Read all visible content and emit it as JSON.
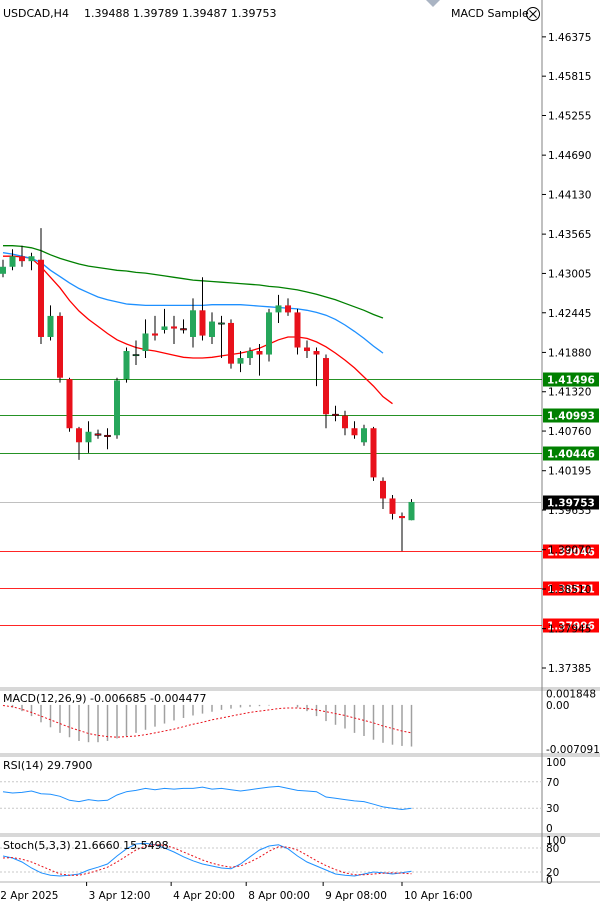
{
  "header": {
    "symbol": "USDCAD,H4",
    "ohlc": "1.39488 1.39789 1.39487 1.39753",
    "indicator_name": "MACD Sample"
  },
  "chart_data": [
    {
      "type": "candlestick",
      "title": "USDCAD,H4",
      "ylim": [
        1.371,
        1.469
      ],
      "y_ticks": [
        "1.46375",
        "1.45815",
        "1.45255",
        "1.44690",
        "1.44130",
        "1.43565",
        "1.43005",
        "1.42445",
        "1.41880",
        "1.41320",
        "1.40760",
        "1.40195",
        "1.39635",
        "1.39070",
        "1.38510",
        "1.37945",
        "1.37385"
      ],
      "x_labels": [
        {
          "label": "2 Apr 2025",
          "index": -0.5
        },
        {
          "label": "3 Apr 12:00",
          "index": 8.8
        },
        {
          "label": "4 Apr 20:00",
          "index": 17.7
        },
        {
          "label": "8 Apr 00:00",
          "index": 25.6
        },
        {
          "label": "9 Apr 08:00",
          "index": 33.7
        },
        {
          "label": "10 Apr 16:00",
          "index": 42.0
        }
      ],
      "candles": [
        {
          "o": 1.43,
          "h": 1.432,
          "l": 1.4295,
          "c": 1.431
        },
        {
          "o": 1.431,
          "h": 1.4335,
          "l": 1.4305,
          "c": 1.4325
        },
        {
          "o": 1.4325,
          "h": 1.434,
          "l": 1.431,
          "c": 1.4318
        },
        {
          "o": 1.4318,
          "h": 1.433,
          "l": 1.4305,
          "c": 1.4325
        },
        {
          "o": 1.432,
          "h": 1.4365,
          "l": 1.42,
          "c": 1.421
        },
        {
          "o": 1.421,
          "h": 1.4255,
          "l": 1.4205,
          "c": 1.424
        },
        {
          "o": 1.424,
          "h": 1.4245,
          "l": 1.4145,
          "c": 1.4152
        },
        {
          "o": 1.415,
          "h": 1.4152,
          "l": 1.4075,
          "c": 1.408
        },
        {
          "o": 1.408,
          "h": 1.4082,
          "l": 1.4035,
          "c": 1.406
        },
        {
          "o": 1.406,
          "h": 1.409,
          "l": 1.4045,
          "c": 1.4075
        },
        {
          "o": 1.4072,
          "h": 1.4078,
          "l": 1.4065,
          "c": 1.407
        },
        {
          "o": 1.407,
          "h": 1.408,
          "l": 1.405,
          "c": 1.4068
        },
        {
          "o": 1.407,
          "h": 1.4152,
          "l": 1.4065,
          "c": 1.4148
        },
        {
          "o": 1.415,
          "h": 1.4195,
          "l": 1.4145,
          "c": 1.419
        },
        {
          "o": 1.4185,
          "h": 1.4205,
          "l": 1.417,
          "c": 1.4185
        },
        {
          "o": 1.419,
          "h": 1.4235,
          "l": 1.418,
          "c": 1.4215
        },
        {
          "o": 1.4215,
          "h": 1.424,
          "l": 1.4205,
          "c": 1.4212
        },
        {
          "o": 1.422,
          "h": 1.425,
          "l": 1.4215,
          "c": 1.4225
        },
        {
          "o": 1.4225,
          "h": 1.424,
          "l": 1.42,
          "c": 1.4222
        },
        {
          "o": 1.4222,
          "h": 1.4235,
          "l": 1.4215,
          "c": 1.422
        },
        {
          "o": 1.421,
          "h": 1.4265,
          "l": 1.4195,
          "c": 1.4248
        },
        {
          "o": 1.4248,
          "h": 1.4295,
          "l": 1.4205,
          "c": 1.4212
        },
        {
          "o": 1.421,
          "h": 1.4245,
          "l": 1.42,
          "c": 1.4232
        },
        {
          "o": 1.423,
          "h": 1.424,
          "l": 1.418,
          "c": 1.423
        },
        {
          "o": 1.423,
          "h": 1.4235,
          "l": 1.4165,
          "c": 1.4172
        },
        {
          "o": 1.4172,
          "h": 1.419,
          "l": 1.416,
          "c": 1.418
        },
        {
          "o": 1.418,
          "h": 1.4195,
          "l": 1.417,
          "c": 1.419
        },
        {
          "o": 1.419,
          "h": 1.42,
          "l": 1.4155,
          "c": 1.4185
        },
        {
          "o": 1.4185,
          "h": 1.425,
          "l": 1.4175,
          "c": 1.4245
        },
        {
          "o": 1.4245,
          "h": 1.427,
          "l": 1.423,
          "c": 1.4255
        },
        {
          "o": 1.4255,
          "h": 1.4265,
          "l": 1.424,
          "c": 1.4245
        },
        {
          "o": 1.4245,
          "h": 1.425,
          "l": 1.4185,
          "c": 1.4195
        },
        {
          "o": 1.4195,
          "h": 1.4205,
          "l": 1.418,
          "c": 1.419
        },
        {
          "o": 1.419,
          "h": 1.4195,
          "l": 1.414,
          "c": 1.4185
        },
        {
          "o": 1.418,
          "h": 1.4185,
          "l": 1.408,
          "c": 1.41
        },
        {
          "o": 1.41,
          "h": 1.4112,
          "l": 1.409,
          "c": 1.4098
        },
        {
          "o": 1.4098,
          "h": 1.4105,
          "l": 1.407,
          "c": 1.408
        },
        {
          "o": 1.408,
          "h": 1.409,
          "l": 1.4065,
          "c": 1.407
        },
        {
          "o": 1.406,
          "h": 1.4085,
          "l": 1.4055,
          "c": 1.408
        },
        {
          "o": 1.408,
          "h": 1.4082,
          "l": 1.4005,
          "c": 1.401
        },
        {
          "o": 1.4005,
          "h": 1.401,
          "l": 1.3965,
          "c": 1.398
        },
        {
          "o": 1.398,
          "h": 1.3985,
          "l": 1.395,
          "c": 1.3958
        },
        {
          "o": 1.3955,
          "h": 1.396,
          "l": 1.3905,
          "c": 1.3952
        },
        {
          "o": 1.3949,
          "h": 1.3979,
          "l": 1.3949,
          "c": 1.3975
        }
      ],
      "moving_averages": [
        {
          "color": "#ff0000",
          "values": [
            1.4325,
            1.4325,
            1.4324,
            1.4322,
            1.431,
            1.4295,
            1.428,
            1.4262,
            1.4247,
            1.4235,
            1.4225,
            1.4215,
            1.4206,
            1.42,
            1.4195,
            1.4192,
            1.419,
            1.4187,
            1.4184,
            1.4181,
            1.418,
            1.418,
            1.4181,
            1.4183,
            1.4185,
            1.4187,
            1.419,
            1.4194,
            1.42,
            1.4206,
            1.421,
            1.421,
            1.4208,
            1.4203,
            1.4196,
            1.4187,
            1.4177,
            1.4166,
            1.4153,
            1.414,
            1.4125,
            1.4115
          ]
        },
        {
          "color": "#1e90ff",
          "values": [
            1.433,
            1.4328,
            1.4325,
            1.4322,
            1.4316,
            1.4305,
            1.4296,
            1.4287,
            1.4279,
            1.4273,
            1.4267,
            1.4263,
            1.426,
            1.4257,
            1.4256,
            1.4255,
            1.4255,
            1.4255,
            1.4255,
            1.4255,
            1.4255,
            1.4255,
            1.4256,
            1.4256,
            1.4256,
            1.4256,
            1.4255,
            1.4254,
            1.4253,
            1.4252,
            1.4251,
            1.425,
            1.4248,
            1.4245,
            1.4241,
            1.4235,
            1.4227,
            1.4218,
            1.4208,
            1.4197,
            1.4187
          ]
        },
        {
          "color": "#008000",
          "values": [
            1.434,
            1.434,
            1.4339,
            1.4337,
            1.4333,
            1.4327,
            1.4322,
            1.4318,
            1.4314,
            1.4311,
            1.4309,
            1.4307,
            1.4305,
            1.4304,
            1.4302,
            1.4301,
            1.4299,
            1.4297,
            1.4295,
            1.4293,
            1.4291,
            1.429,
            1.4289,
            1.4288,
            1.4287,
            1.4286,
            1.4285,
            1.4284,
            1.4282,
            1.4281,
            1.4279,
            1.4277,
            1.4274,
            1.4271,
            1.4267,
            1.4263,
            1.4258,
            1.4253,
            1.4248,
            1.4242,
            1.4237
          ]
        }
      ],
      "horizontal_levels": [
        {
          "label": "1.41496",
          "value": 1.41496,
          "color": "#008000"
        },
        {
          "label": "1.40993",
          "value": 1.40993,
          "color": "#008000"
        },
        {
          "label": "1.40446",
          "value": 1.40446,
          "color": "#008000"
        },
        {
          "label": "1.39753",
          "value": 1.39753,
          "color": "#000000"
        },
        {
          "label": "1.39046",
          "value": 1.39046,
          "color": "#ff0000"
        },
        {
          "label": "1.38521",
          "value": 1.38521,
          "color": "#ff0000"
        },
        {
          "label": "1.37996",
          "value": 1.37996,
          "color": "#ff0000"
        }
      ]
    },
    {
      "type": "bar",
      "title": "MACD(12,26,9) -0.006685 -0.004477",
      "ylim": [
        -0.0079,
        0.0024
      ],
      "y_ticks": [
        "0.001848",
        "0.00",
        "-0.007091"
      ],
      "histogram": [
        0.0,
        -0.0004,
        -0.001,
        -0.0018,
        -0.0028,
        -0.0036,
        -0.0045,
        -0.0052,
        -0.0058,
        -0.006,
        -0.006,
        -0.0058,
        -0.0054,
        -0.005,
        -0.0045,
        -0.004,
        -0.0035,
        -0.003,
        -0.0025,
        -0.0021,
        -0.0017,
        -0.0014,
        -0.0011,
        -0.0008,
        -0.0006,
        -0.0004,
        -0.0003,
        -0.0002,
        -0.0001,
        0.0,
        0.0,
        -0.0004,
        -0.001,
        -0.0018,
        -0.0026,
        -0.0032,
        -0.0038,
        -0.0045,
        -0.005,
        -0.0056,
        -0.0061,
        -0.0064,
        -0.0066,
        -0.0067
      ],
      "signal": [
        -0.0001,
        -0.0003,
        -0.0007,
        -0.0012,
        -0.0018,
        -0.0024,
        -0.003,
        -0.0036,
        -0.0041,
        -0.0046,
        -0.0049,
        -0.0051,
        -0.0052,
        -0.0051,
        -0.005,
        -0.0048,
        -0.0045,
        -0.0042,
        -0.0039,
        -0.0035,
        -0.0031,
        -0.0028,
        -0.0024,
        -0.0021,
        -0.0018,
        -0.0015,
        -0.0012,
        -0.001,
        -0.0008,
        -0.0006,
        -0.0005,
        -0.0005,
        -0.0006,
        -0.0008,
        -0.0011,
        -0.0014,
        -0.0017,
        -0.0021,
        -0.0025,
        -0.0029,
        -0.0034,
        -0.0038,
        -0.0042,
        -0.0045
      ]
    },
    {
      "type": "line",
      "title": "RSI(14) 29.7900",
      "ylim": [
        0,
        100
      ],
      "y_ticks": [
        "100",
        "70",
        "30",
        "0"
      ],
      "values": [
        55,
        53,
        54,
        56,
        52,
        51,
        48,
        42,
        40,
        43,
        41,
        42,
        50,
        55,
        57,
        60,
        58,
        60,
        59,
        60,
        60,
        62,
        59,
        60,
        58,
        56,
        58,
        60,
        62,
        63,
        60,
        57,
        56,
        55,
        47,
        45,
        43,
        41,
        40,
        36,
        32,
        30,
        28,
        29.79
      ]
    },
    {
      "type": "line",
      "title": "Stoch(5,3,3) 21.6660 15.5498",
      "ylim": [
        0,
        100
      ],
      "y_ticks": [
        "100",
        "80",
        "20",
        "0"
      ],
      "main": [
        60,
        55,
        45,
        30,
        18,
        12,
        10,
        12,
        15,
        25,
        32,
        40,
        60,
        78,
        90,
        92,
        88,
        80,
        70,
        58,
        48,
        40,
        35,
        30,
        28,
        40,
        58,
        75,
        85,
        88,
        78,
        60,
        45,
        35,
        25,
        15,
        12,
        10,
        15,
        20,
        18,
        15,
        18,
        21.666
      ],
      "signal": [
        55,
        56,
        52,
        45,
        35,
        25,
        15,
        12,
        12,
        17,
        24,
        32,
        45,
        60,
        75,
        85,
        88,
        87,
        80,
        70,
        60,
        50,
        42,
        36,
        32,
        35,
        45,
        57,
        72,
        83,
        82,
        75,
        62,
        48,
        36,
        26,
        18,
        13,
        13,
        15,
        17,
        18,
        17,
        15.5498
      ]
    }
  ]
}
